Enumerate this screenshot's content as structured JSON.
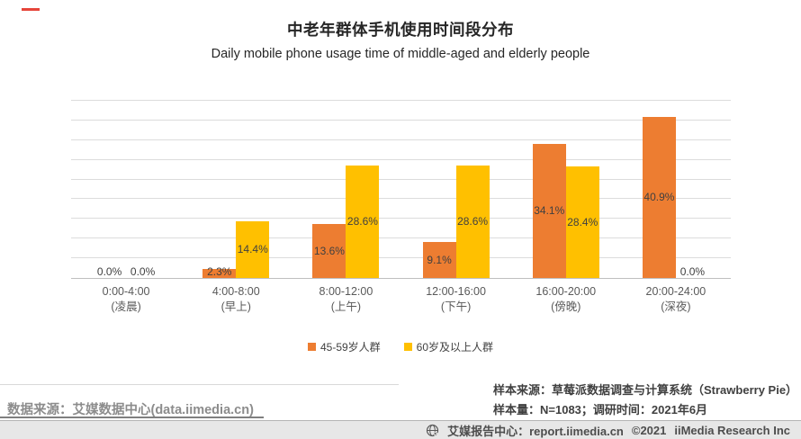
{
  "brand": {
    "dash_color": "#e6453a"
  },
  "header": {
    "title": "中老年群体手机使用时间段分布",
    "subtitle": "Daily mobile phone usage time of middle-aged and elderly people"
  },
  "chart_data": {
    "type": "bar",
    "title": "中老年群体手机使用时间段分布",
    "subtitle": "Daily mobile phone usage time of middle-aged and elderly people",
    "categories": [
      {
        "time": "0:00-4:00",
        "period": "(凌晨)"
      },
      {
        "time": "4:00-8:00",
        "period": "(早上)"
      },
      {
        "time": "8:00-12:00",
        "period": "(上午)"
      },
      {
        "time": "12:00-16:00",
        "period": "(下午)"
      },
      {
        "time": "16:00-20:00",
        "period": "(傍晚)"
      },
      {
        "time": "20:00-24:00",
        "period": "(深夜)"
      }
    ],
    "series": [
      {
        "name": "45-59岁人群",
        "color": "#ED7D31",
        "values": [
          0.0,
          2.3,
          13.6,
          9.1,
          34.1,
          40.9
        ],
        "labels": [
          "0.0%",
          "2.3%",
          "13.6%",
          "9.1%",
          "34.1%",
          "40.9%"
        ]
      },
      {
        "name": "60岁及以上人群",
        "color": "#FFC000",
        "values": [
          0.0,
          14.4,
          28.6,
          28.6,
          28.4,
          0.0
        ],
        "labels": [
          "0.0%",
          "14.4%",
          "28.6%",
          "28.6%",
          "28.4%",
          "0.0%"
        ]
      }
    ],
    "ylim": [
      0,
      45
    ],
    "grid_step": 5,
    "grid": true,
    "y_axis_labels_visible": false,
    "legend_position": "bottom",
    "label_color": "#404040",
    "axis_text_color": "#595959"
  },
  "footer": {
    "left_source": "数据来源：艾媒数据中心(data.iimedia.cn)",
    "sample_source": "样本来源：草莓派数据调查与计算系统（Strawberry Pie）",
    "sample_info": "样本量：N=1083；调研时间：2021年6月"
  },
  "bottom_bar": {
    "site": "艾媒报告中心：report.iimedia.cn",
    "copyright": "©2021",
    "company": "iiMedia Research Inc"
  }
}
